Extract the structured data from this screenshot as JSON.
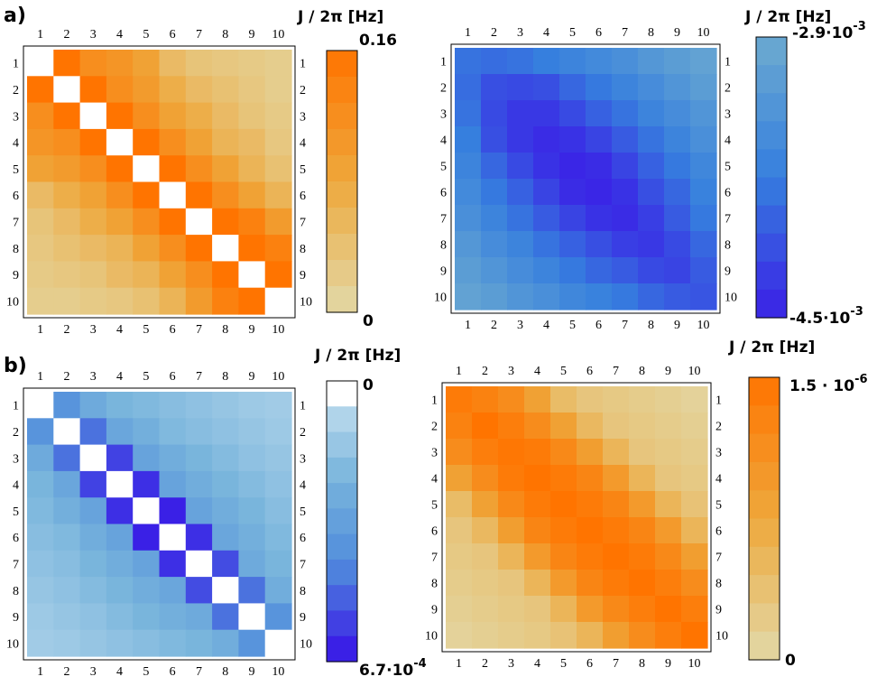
{
  "chart_data": [
    {
      "id": "a-left",
      "type": "heatmap",
      "panel_label": "a)",
      "labels": [
        "1",
        "2",
        "3",
        "4",
        "5",
        "6",
        "7",
        "8",
        "9",
        "10"
      ],
      "colorbar": {
        "title": "J / 2π [Hz]",
        "top_label": "0.16",
        "top_sup": "",
        "bottom_label": "0",
        "bottom_sup": "",
        "min": 0,
        "max": 0.16,
        "steps": 10,
        "palette": "orange",
        "invert": false
      },
      "blank_diagonal": true,
      "min": 0,
      "max": 0.16,
      "values": [
        [
          0.0,
          0.16,
          0.12,
          0.11,
          0.09,
          0.05,
          0.035,
          0.03,
          0.025,
          0.02
        ],
        [
          0.16,
          0.0,
          0.16,
          0.12,
          0.1,
          0.07,
          0.05,
          0.04,
          0.03,
          0.02
        ],
        [
          0.12,
          0.16,
          0.0,
          0.16,
          0.12,
          0.09,
          0.07,
          0.05,
          0.035,
          0.025
        ],
        [
          0.11,
          0.12,
          0.16,
          0.0,
          0.16,
          0.12,
          0.09,
          0.06,
          0.05,
          0.03
        ],
        [
          0.09,
          0.1,
          0.12,
          0.16,
          0.0,
          0.16,
          0.12,
          0.09,
          0.06,
          0.04
        ],
        [
          0.05,
          0.07,
          0.09,
          0.12,
          0.16,
          0.0,
          0.16,
          0.12,
          0.09,
          0.06
        ],
        [
          0.035,
          0.05,
          0.07,
          0.09,
          0.12,
          0.16,
          0.0,
          0.16,
          0.14,
          0.1
        ],
        [
          0.03,
          0.04,
          0.05,
          0.06,
          0.09,
          0.12,
          0.16,
          0.0,
          0.16,
          0.14
        ],
        [
          0.025,
          0.03,
          0.035,
          0.05,
          0.06,
          0.09,
          0.12,
          0.16,
          0.0,
          0.16
        ],
        [
          0.02,
          0.02,
          0.025,
          0.03,
          0.04,
          0.06,
          0.1,
          0.14,
          0.16,
          0.0
        ]
      ]
    },
    {
      "id": "a-right",
      "type": "heatmap",
      "panel_label": "",
      "labels": [
        "1",
        "2",
        "3",
        "4",
        "5",
        "6",
        "7",
        "8",
        "9",
        "10"
      ],
      "colorbar": {
        "title": "J / 2π [Hz]",
        "top_label": "-2.9·10",
        "top_sup": "-3",
        "bottom_label": "-4.5·10",
        "bottom_sup": "-3",
        "min": -0.0045,
        "max": -0.0029,
        "steps": 10,
        "palette": "blue",
        "invert": false
      },
      "blank_diagonal": false,
      "min": -0.0045,
      "max": -0.0029,
      "values": [
        [
          -0.0038,
          -0.00385,
          -0.0038,
          -0.0037,
          -0.0036,
          -0.0035,
          -0.0034,
          -0.00325,
          -0.00315,
          -0.00305
        ],
        [
          -0.00385,
          -0.0041,
          -0.00415,
          -0.0041,
          -0.0039,
          -0.00375,
          -0.0036,
          -0.00345,
          -0.0033,
          -0.00315
        ],
        [
          -0.0038,
          -0.00415,
          -0.0043,
          -0.0043,
          -0.00415,
          -0.00395,
          -0.0038,
          -0.0036,
          -0.00345,
          -0.0033
        ],
        [
          -0.0037,
          -0.0041,
          -0.0043,
          -0.0044,
          -0.00435,
          -0.0042,
          -0.004,
          -0.0038,
          -0.0036,
          -0.0034
        ],
        [
          -0.0036,
          -0.0039,
          -0.00415,
          -0.00435,
          -0.00445,
          -0.0044,
          -0.0042,
          -0.00395,
          -0.00375,
          -0.00355
        ],
        [
          -0.0035,
          -0.00375,
          -0.00395,
          -0.0042,
          -0.0044,
          -0.00445,
          -0.00435,
          -0.0041,
          -0.0039,
          -0.00365
        ],
        [
          -0.0034,
          -0.0036,
          -0.0038,
          -0.004,
          -0.0042,
          -0.00435,
          -0.0044,
          -0.00425,
          -0.004,
          -0.00375
        ],
        [
          -0.00325,
          -0.00345,
          -0.0036,
          -0.0038,
          -0.00395,
          -0.0041,
          -0.00425,
          -0.0043,
          -0.00415,
          -0.0039
        ],
        [
          -0.00315,
          -0.0033,
          -0.00345,
          -0.0036,
          -0.00375,
          -0.0039,
          -0.004,
          -0.00415,
          -0.0042,
          -0.004
        ],
        [
          -0.00305,
          -0.00315,
          -0.0033,
          -0.0034,
          -0.00355,
          -0.00365,
          -0.00375,
          -0.0039,
          -0.004,
          -0.00405
        ]
      ]
    },
    {
      "id": "b-left",
      "type": "heatmap",
      "panel_label": "b)",
      "labels": [
        "1",
        "2",
        "3",
        "4",
        "5",
        "6",
        "7",
        "8",
        "9",
        "10"
      ],
      "colorbar": {
        "title": "J / 2π [Hz]",
        "top_label": "0",
        "top_sup": "",
        "bottom_label": "6.7·10",
        "bottom_sup": "-4",
        "min": 0,
        "max": 0.00067,
        "steps": 11,
        "palette": "blue",
        "invert": true
      },
      "blank_diagonal": true,
      "min": 0,
      "max": 0.00067,
      "values": [
        [
          0.0,
          0.0004,
          0.00028,
          0.00022,
          0.0002,
          0.00018,
          0.00016,
          0.00014,
          0.00012,
          0.00011
        ],
        [
          0.0004,
          0.0,
          0.0005,
          0.0003,
          0.00025,
          0.0002,
          0.00018,
          0.00016,
          0.00014,
          0.00012
        ],
        [
          0.00028,
          0.0005,
          0.0,
          0.0006,
          0.00032,
          0.00026,
          0.00022,
          0.00019,
          0.00016,
          0.00014
        ],
        [
          0.00022,
          0.0003,
          0.0006,
          0.0,
          0.00064,
          0.00032,
          0.00026,
          0.00022,
          0.00019,
          0.00016
        ],
        [
          0.0002,
          0.00025,
          0.00032,
          0.00064,
          0.0,
          0.00067,
          0.00032,
          0.00026,
          0.00022,
          0.00018
        ],
        [
          0.00018,
          0.0002,
          0.00026,
          0.00032,
          0.00067,
          0.0,
          0.00064,
          0.0003,
          0.00025,
          0.0002
        ],
        [
          0.00016,
          0.00018,
          0.00022,
          0.00026,
          0.00032,
          0.00064,
          0.0,
          0.00058,
          0.00028,
          0.00022
        ],
        [
          0.00014,
          0.00016,
          0.00019,
          0.00022,
          0.00026,
          0.0003,
          0.00058,
          0.0,
          0.0005,
          0.00026
        ],
        [
          0.00012,
          0.00014,
          0.00016,
          0.00019,
          0.00022,
          0.00025,
          0.00028,
          0.0005,
          0.0,
          0.0004
        ],
        [
          0.00011,
          0.00012,
          0.00014,
          0.00016,
          0.00018,
          0.0002,
          0.00022,
          0.00026,
          0.0004,
          0.0
        ]
      ]
    },
    {
      "id": "b-right",
      "type": "heatmap",
      "panel_label": "",
      "labels": [
        "1",
        "2",
        "3",
        "4",
        "5",
        "6",
        "7",
        "8",
        "9",
        "10"
      ],
      "colorbar": {
        "title": "J / 2π [Hz]",
        "top_label": "1.5 · 10",
        "top_sup": "-6",
        "bottom_label": "0",
        "bottom_sup": "",
        "min": 0,
        "max": 1.5e-06,
        "steps": 10,
        "palette": "orange",
        "invert": false
      },
      "blank_diagonal": false,
      "min": 0,
      "max": 1.5e-06,
      "values": [
        [
          1.4e-06,
          1.3e-06,
          1.15e-06,
          8.5e-07,
          4.5e-07,
          3e-07,
          2.5e-07,
          2e-07,
          1.5e-07,
          1e-07
        ],
        [
          1.3e-06,
          1.5e-06,
          1.35e-06,
          1.15e-06,
          8.5e-07,
          5e-07,
          3e-07,
          2.5e-07,
          2e-07,
          1.5e-07
        ],
        [
          1.15e-06,
          1.35e-06,
          1.45e-06,
          1.4e-06,
          1.2e-06,
          9e-07,
          5.5e-07,
          3e-07,
          2.5e-07,
          2e-07
        ],
        [
          8.5e-07,
          1.15e-06,
          1.4e-06,
          1.5e-06,
          1.4e-06,
          1.25e-06,
          9.5e-07,
          5.5e-07,
          3e-07,
          2.5e-07
        ],
        [
          4.5e-07,
          8.5e-07,
          1.2e-06,
          1.4e-06,
          1.5e-06,
          1.4e-06,
          1.25e-06,
          9.5e-07,
          5.5e-07,
          3.5e-07
        ],
        [
          3e-07,
          5e-07,
          9e-07,
          1.25e-06,
          1.4e-06,
          1.5e-06,
          1.4e-06,
          1.25e-06,
          9.5e-07,
          5.5e-07
        ],
        [
          2.5e-07,
          3e-07,
          5.5e-07,
          9.5e-07,
          1.25e-06,
          1.4e-06,
          1.5e-06,
          1.4e-06,
          1.2e-06,
          9e-07
        ],
        [
          2e-07,
          2.5e-07,
          3e-07,
          5.5e-07,
          9.5e-07,
          1.25e-06,
          1.4e-06,
          1.5e-06,
          1.35e-06,
          1.15e-06
        ],
        [
          1.5e-07,
          2e-07,
          2.5e-07,
          3e-07,
          5.5e-07,
          9.5e-07,
          1.2e-06,
          1.35e-06,
          1.5e-06,
          1.35e-06
        ],
        [
          1e-07,
          1.5e-07,
          2e-07,
          2.5e-07,
          3.5e-07,
          5.5e-07,
          9e-07,
          1.15e-06,
          1.35e-06,
          1.5e-06
        ]
      ]
    }
  ]
}
